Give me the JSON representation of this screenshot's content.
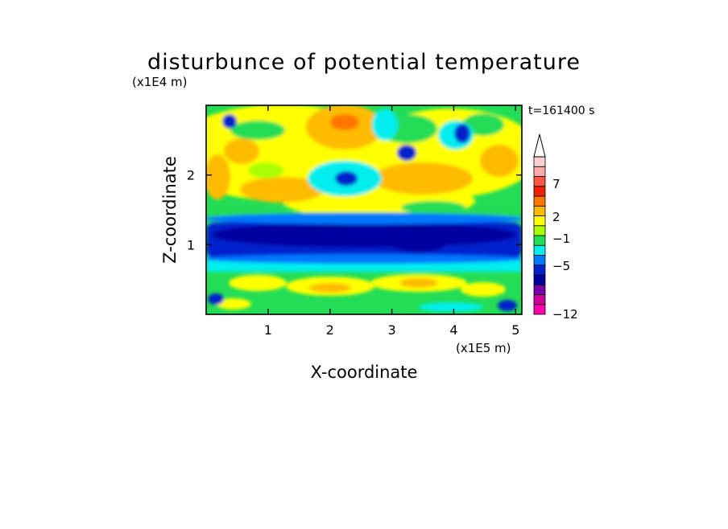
{
  "chart_data": {
    "type": "heatmap",
    "title": "disturbunce of potential temperature",
    "time_label": "t=161400 s",
    "xlabel": "X-coordinate",
    "ylabel": "Z-coordinate",
    "x_unit": "(x1E5 m)",
    "y_unit": "(x1E4 m)",
    "x_ticks": [
      1,
      2,
      3,
      4,
      5
    ],
    "y_ticks": [
      1,
      2
    ],
    "xlim": [
      0,
      5.1
    ],
    "ylim": [
      0,
      3.0
    ],
    "grid": false,
    "colorbar": {
      "labels": [
        {
          "value": 7,
          "text": "7"
        },
        {
          "value": 2,
          "text": "2"
        },
        {
          "value": -1,
          "text": "−1"
        },
        {
          "value": -5,
          "text": "−5"
        },
        {
          "value": -12,
          "text": "−12"
        }
      ],
      "colors": [
        "#ff00aa",
        "#cc0099",
        "#7700aa",
        "#0000a0",
        "#0022cc",
        "#0077ff",
        "#00eeee",
        "#22dd55",
        "#aaff00",
        "#ffff00",
        "#ffbb00",
        "#ff7700",
        "#ee2200",
        "#ff5544",
        "#ffaaaa",
        "#ffcfcf"
      ]
    }
  }
}
